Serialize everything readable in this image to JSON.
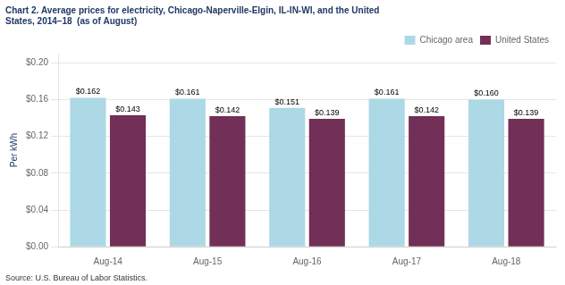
{
  "chart_data": {
    "type": "bar",
    "title": [
      "Chart 2. Average prices for electricity, Chicago-Naperville-Elgin, IL-IN-WI, and the United",
      "States, 2014–18  (as of August)"
    ],
    "title_color": "#1F3864",
    "ylabel": "Per kWh",
    "annotations": [
      "Source: U.S. Bureau of Labor Statistics."
    ],
    "categories": [
      "Aug-14",
      "Aug-15",
      "Aug-16",
      "Aug-17",
      "Aug-18"
    ],
    "series": [
      {
        "name": "Chicago area",
        "color": "#ADD8E6",
        "values": [
          0.162,
          0.161,
          0.151,
          0.161,
          0.16
        ],
        "value_labels": [
          "$0.162",
          "$0.161",
          "$0.151",
          "$0.161",
          "$0.160"
        ]
      },
      {
        "name": "United States",
        "color": "#722F57",
        "values": [
          0.143,
          0.142,
          0.139,
          0.142,
          0.139
        ],
        "value_labels": [
          "$0.143",
          "$0.142",
          "$0.139",
          "$0.142",
          "$0.139"
        ]
      }
    ],
    "ylim": [
      0,
      0.21
    ],
    "yticks": [
      {
        "value": 0.0,
        "label": "$0.00"
      },
      {
        "value": 0.04,
        "label": "$0.04"
      },
      {
        "value": 0.08,
        "label": "$0.08"
      },
      {
        "value": 0.12,
        "label": "$0.12"
      },
      {
        "value": 0.16,
        "label": "$0.16"
      },
      {
        "value": 0.2,
        "label": "$0.20"
      }
    ],
    "grid": true,
    "legend": "upper right",
    "data_labels": true
  }
}
